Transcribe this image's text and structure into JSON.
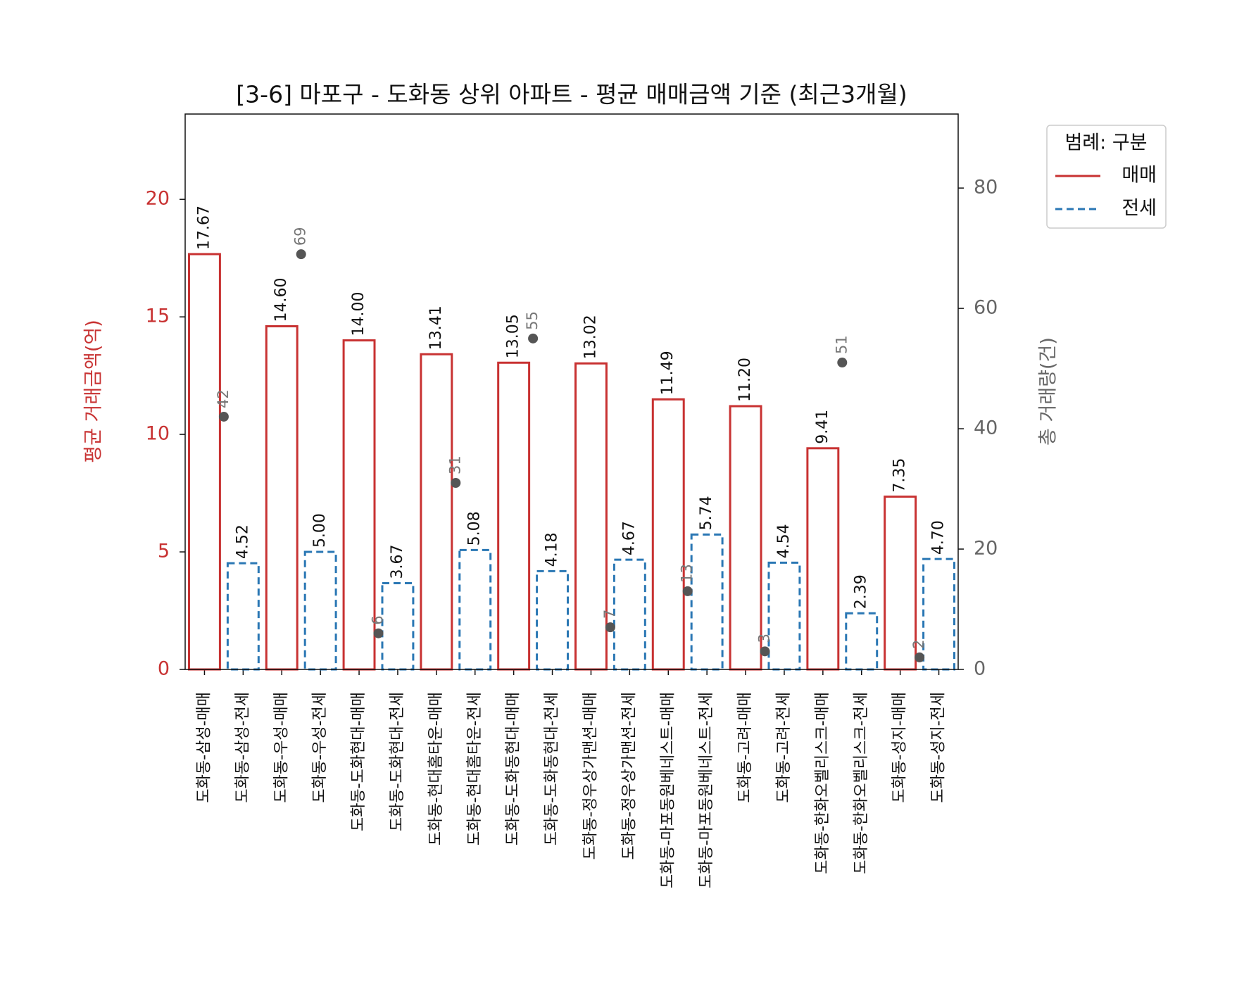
{
  "chart_data": {
    "type": "bar",
    "title": "[3-6] 마포구 - 도화동 상위 아파트 - 평균 매매금액 기준 (최근3개월)",
    "y_label": "평균 거래금액(억)",
    "y2_label": "총 거래량(건)",
    "legend_title": "범례: 구분",
    "legend": "upper right outside",
    "categories": [
      "도화동-삼성-매매",
      "도화동-삼성-전세",
      "도화동-우성-매매",
      "도화동-우성-전세",
      "도화동-도화현대-매매",
      "도화동-도화현대-전세",
      "도화동-현대홈타운-매매",
      "도화동-현대홈타운-전세",
      "도화동-도화동현대-매매",
      "도화동-도화동현대-전세",
      "도화동-정우상가맨션-매매",
      "도화동-정우상가맨션-전세",
      "도화동-마포동원베네스트-매매",
      "도화동-마포동원베네스트-전세",
      "도화동-고려-매매",
      "도화동-고려-전세",
      "도화동-한화오벨리스크-매매",
      "도화동-한화오벨리스크-전세",
      "도화동-성지-매매",
      "도화동-성지-전세"
    ],
    "series": [
      {
        "name": "매매",
        "color": "#c83232",
        "dash": false,
        "values": [
          17.67,
          null,
          14.6,
          null,
          14.0,
          null,
          13.41,
          null,
          13.05,
          null,
          13.02,
          null,
          11.49,
          null,
          11.2,
          null,
          9.41,
          null,
          7.35,
          null
        ],
        "value_labels": [
          "17.67",
          null,
          "14.60",
          null,
          "14.00",
          null,
          "13.41",
          null,
          "13.05",
          null,
          "13.02",
          null,
          "11.49",
          null,
          "11.20",
          null,
          "9.41",
          null,
          "7.35",
          null
        ]
      },
      {
        "name": "전세",
        "color": "#2a77b4",
        "dash": true,
        "values": [
          null,
          4.52,
          null,
          5.0,
          null,
          3.67,
          null,
          5.08,
          null,
          4.18,
          null,
          4.67,
          null,
          5.74,
          null,
          4.54,
          null,
          2.39,
          null,
          4.7
        ],
        "value_labels": [
          null,
          "4.52",
          null,
          "5.00",
          null,
          "3.67",
          null,
          "5.08",
          null,
          "4.18",
          null,
          "4.67",
          null,
          "5.74",
          null,
          "4.54",
          null,
          "2.39",
          null,
          "4.70"
        ]
      }
    ],
    "counts": {
      "type": "scatter",
      "axis": "y2",
      "color": "#555555",
      "values": [
        42,
        null,
        69,
        null,
        6,
        null,
        31,
        null,
        55,
        null,
        7,
        null,
        13,
        null,
        3,
        null,
        51,
        null,
        2,
        null
      ]
    },
    "ylim": [
      0,
      23.63
    ],
    "yticks": [
      0,
      5,
      10,
      15,
      20
    ],
    "y2lim": [
      0,
      92.3
    ],
    "y2ticks": [
      0,
      20,
      40,
      60,
      80
    ],
    "grid": false
  }
}
